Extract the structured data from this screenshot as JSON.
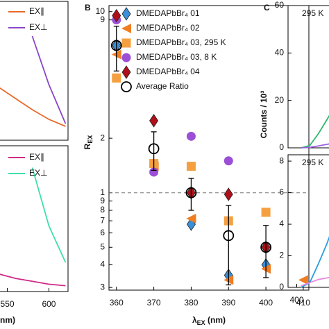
{
  "chart_data": [
    {
      "type": "line",
      "x": [
        540,
        560,
        580,
        600,
        620
      ],
      "xlim": [
        537,
        623
      ],
      "ylim": [
        0,
        1
      ],
      "series": [
        {
          "name": "EX∥",
          "color": "#e8692a",
          "values": [
            0.38,
            0.3,
            0.22,
            0.15,
            0.1
          ]
        },
        {
          "name": "EX⊥",
          "color": "#8a45c8",
          "values": [
            null,
            null,
            0.75,
            0.4,
            0.12
          ]
        }
      ]
    },
    {
      "type": "line",
      "x": [
        540,
        560,
        580,
        600,
        620
      ],
      "xlim": [
        537,
        623
      ],
      "ylim": [
        0,
        1
      ],
      "xticks": [
        550,
        600
      ],
      "xlabel": "nm)",
      "series": [
        {
          "name": "EX∥",
          "color": "#d02a86",
          "values": [
            0.12,
            0.09,
            0.07,
            0.05,
            0.04
          ]
        },
        {
          "name": "EX⊥",
          "color": "#3ee0a6",
          "values": [
            null,
            null,
            0.85,
            0.45,
            0.2
          ]
        }
      ]
    },
    {
      "type": "scatter",
      "panel": "B",
      "ylabel": "R",
      "ylabel_sub": "EX",
      "xlabel": "λ",
      "xlabel_sub": "EX",
      "xlabel_after": " (nm)",
      "log_y": true,
      "xlim": [
        358,
        411.5
      ],
      "ylim": [
        0.29,
        10.8
      ],
      "xticks": [
        360,
        370,
        380,
        390,
        400,
        410
      ],
      "yticks": [
        {
          "value": 0.3,
          "label": "3"
        },
        {
          "value": 0.4,
          "label": "4"
        },
        {
          "value": 0.5,
          "label": "5"
        },
        {
          "value": 0.6,
          "label": "6"
        },
        {
          "value": 0.7,
          "label": "7"
        },
        {
          "value": 0.8,
          "label": "8"
        },
        {
          "value": 0.9,
          "label": "9"
        },
        1,
        2,
        9,
        10
      ],
      "reference_line": 1,
      "x": [
        360,
        370,
        380,
        390,
        400,
        410
      ],
      "series": [
        {
          "name": "DMEDAPbBr₄ 01",
          "marker": "diamond",
          "color": "#3a8fd9",
          "values": [
            6.5,
            null,
            0.67,
            0.35,
            0.4,
            null
          ]
        },
        {
          "name": "DMEDAPbBr₄ 02",
          "marker": "triangle-left",
          "color": "#f07d22",
          "values": [
            5.8,
            1.4,
            0.72,
            0.33,
            0.38,
            0.33
          ]
        },
        {
          "name": "DMEDAPbBr₄ 03, 295 K",
          "marker": "square",
          "color": "#f4a040",
          "values": [
            4.3,
            1.45,
            1.4,
            0.7,
            0.78,
            null
          ]
        },
        {
          "name": "DMEDAPbBr₄ 03, 8 K",
          "marker": "circle",
          "color": "#9b4fd6",
          "values": [
            9,
            1.3,
            2.05,
            1.5,
            null,
            null
          ]
        },
        {
          "name": "DMEDAPbBr₄ 04",
          "marker": "diamond",
          "color": "#b0101a",
          "values": [
            9.5,
            2.5,
            1.0,
            0.98,
            0.5,
            null
          ]
        },
        {
          "name": "Average Ratio",
          "marker": "open-circle",
          "color": "#000000",
          "values": [
            6.5,
            1.75,
            1.0,
            0.58,
            0.5,
            null
          ],
          "errors": [
            1.8,
            0.42,
            0.2,
            0.27,
            0.16,
            null
          ]
        }
      ]
    },
    {
      "type": "line",
      "panel": "C",
      "annotation": "295 K",
      "ylabel": "Counts / 10³",
      "x": [
        405,
        415,
        425,
        435,
        443
      ],
      "xlim": [
        390,
        450
      ],
      "ylim": [
        0,
        60
      ],
      "yticks": [
        0,
        20,
        40,
        60
      ],
      "series": [
        {
          "color": "#2fb86a",
          "values": [
            0,
            1,
            6,
            12,
            17
          ]
        },
        {
          "color": "#9b5fe0",
          "values": [
            0,
            0.2,
            0.8,
            1.5,
            2
          ]
        }
      ]
    },
    {
      "type": "line",
      "annotation": "295 K",
      "x": [
        405,
        415,
        425,
        435,
        443
      ],
      "xlim": [
        390,
        450
      ],
      "ylim": [
        0,
        8.4
      ],
      "yticks": [
        0,
        2,
        4,
        6,
        8
      ],
      "xticks": [
        400
      ],
      "series": [
        {
          "color": "#2a9be0",
          "values": [
            0,
            0.3,
            1.5,
            2.8,
            4
          ]
        },
        {
          "color": "#e88ae0",
          "values": [
            0.1,
            0.3,
            0.5,
            0.6,
            0.7
          ]
        }
      ]
    }
  ]
}
